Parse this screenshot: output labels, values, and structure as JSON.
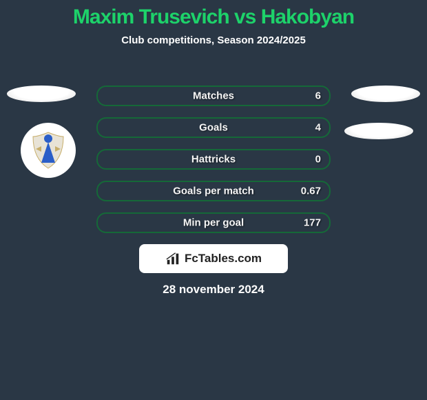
{
  "title": {
    "text": "Maxim Trusevich vs Hakobyan",
    "fontsize": 30,
    "color": "#1dd26a"
  },
  "subtitle": {
    "text": "Club competitions, Season 2024/2025",
    "fontsize": 15
  },
  "date": {
    "text": "28 november 2024",
    "fontsize": 17
  },
  "brand": {
    "text": "FcTables.com",
    "fontsize": 17
  },
  "colors": {
    "bg": "#2a3745",
    "accent": "#156938",
    "text": "#ffffff"
  },
  "stats": {
    "label_fontsize": 15,
    "value_fontsize": 15,
    "rows": [
      {
        "label": "Matches",
        "left": "",
        "right": "6",
        "fill_pct": 0
      },
      {
        "label": "Goals",
        "left": "",
        "right": "4",
        "fill_pct": 0
      },
      {
        "label": "Hattricks",
        "left": "",
        "right": "0",
        "fill_pct": 0
      },
      {
        "label": "Goals per match",
        "left": "",
        "right": "0.67",
        "fill_pct": 0
      },
      {
        "label": "Min per goal",
        "left": "",
        "right": "177",
        "fill_pct": 0
      }
    ]
  }
}
